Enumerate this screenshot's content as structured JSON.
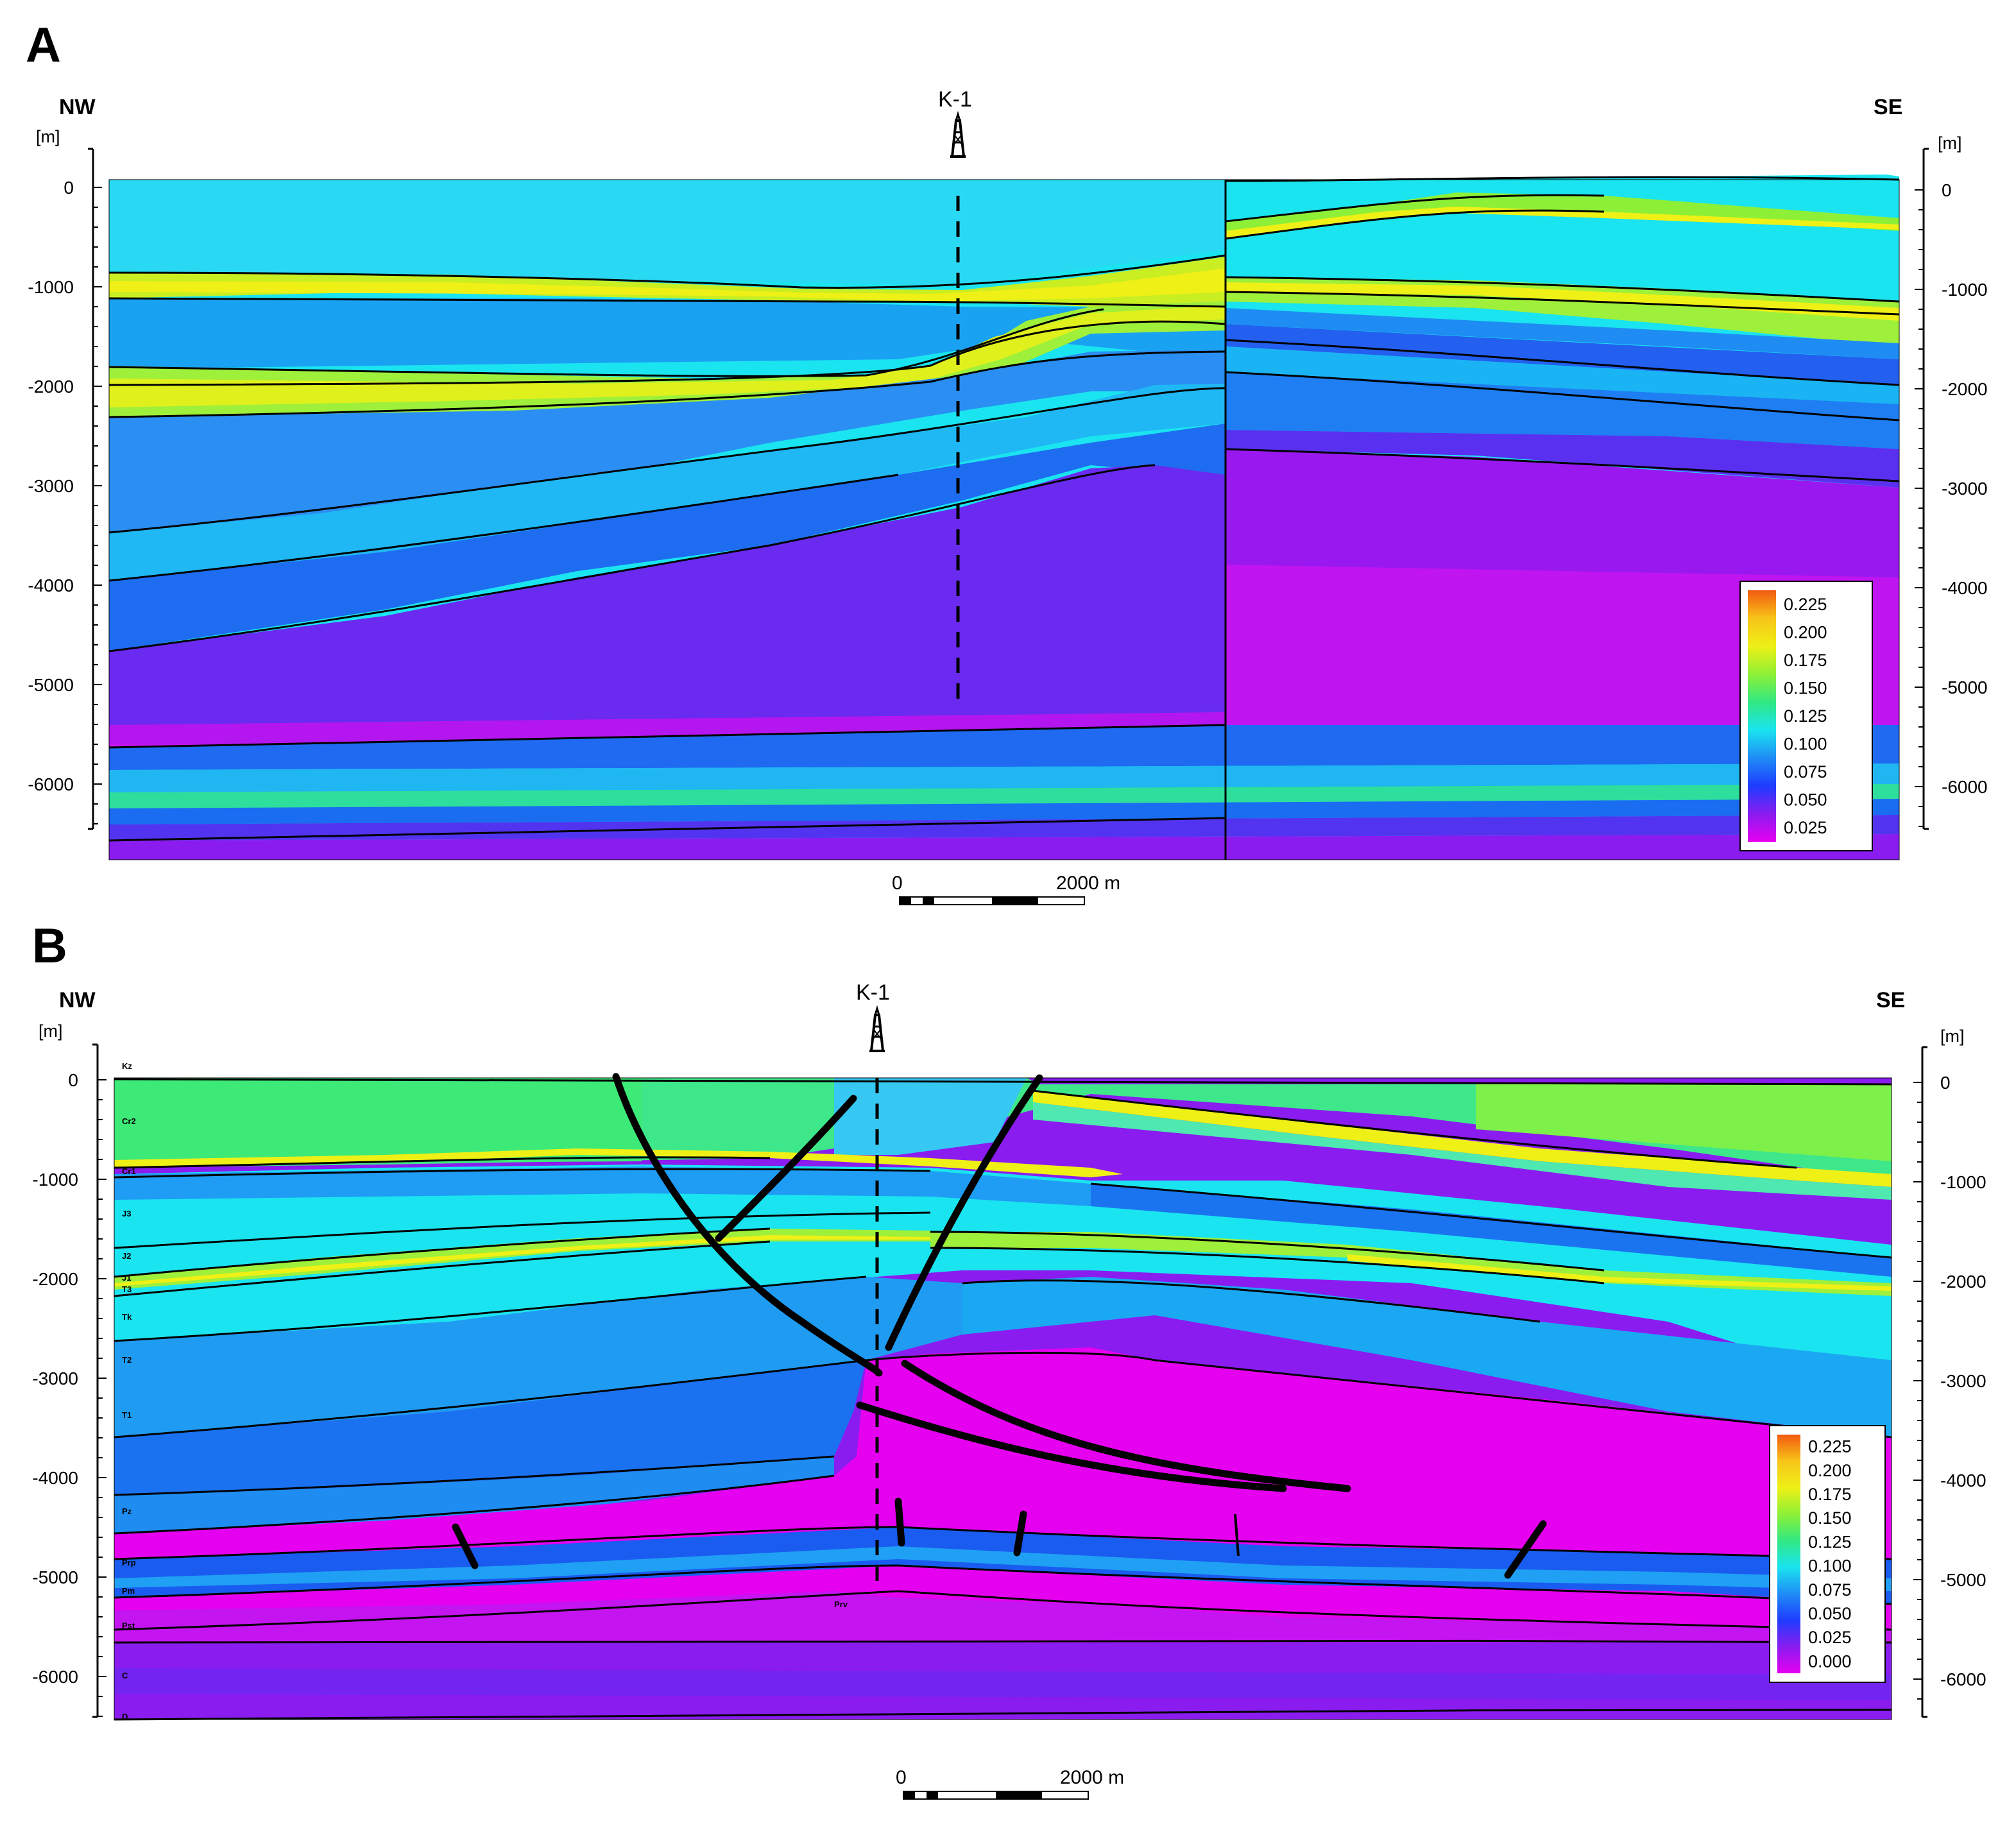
{
  "panels": [
    {
      "id": "A",
      "label": "A",
      "dir_left": "NW",
      "dir_right": "SE",
      "depth_unit": "[m]",
      "well": "K-1",
      "depth_ticks": [
        "0",
        "-1000",
        "-2000",
        "-3000",
        "-4000",
        "-5000",
        "-6000"
      ],
      "depth_values": [
        0,
        -1000,
        -2000,
        -3000,
        -4000,
        -5000,
        -6000
      ],
      "scale_bar": {
        "start": "0",
        "end": "2000 m"
      },
      "legend": [
        "0.225",
        "0.200",
        "0.175",
        "0.150",
        "0.125",
        "0.100",
        "0.075",
        "0.050",
        "0.025"
      ],
      "formation_labels": []
    },
    {
      "id": "B",
      "label": "B",
      "dir_left": "NW",
      "dir_right": "SE",
      "depth_unit": "[m]",
      "well": "K-1",
      "depth_ticks": [
        "0",
        "-1000",
        "-2000",
        "-3000",
        "-4000",
        "-5000",
        "-6000"
      ],
      "depth_values": [
        0,
        -1000,
        -2000,
        -3000,
        -4000,
        -5000,
        -6000
      ],
      "scale_bar": {
        "start": "0",
        "end": "2000 m"
      },
      "legend": [
        "0.225",
        "0.200",
        "0.175",
        "0.150",
        "0.125",
        "0.100",
        "0.075",
        "0.050",
        "0.025",
        "0.000"
      ],
      "formation_labels": [
        "Kz",
        "Cr2",
        "Cr1",
        "J3",
        "J2",
        "J1",
        "T3",
        "Tk",
        "T2",
        "T1",
        "Pz",
        "Prp",
        "Pm",
        "Pst",
        "C",
        "D",
        "Prv"
      ]
    }
  ],
  "colors": {
    "c000": "#e600f0",
    "c025": "#8a1cf0",
    "c050": "#1e3cff",
    "c075": "#1f8cf5",
    "c100": "#1ae4f0",
    "c125": "#31e882",
    "c150": "#8ef036",
    "c175": "#eef016",
    "c200": "#f7c418",
    "c225": "#f25a10",
    "line": "#000000"
  }
}
